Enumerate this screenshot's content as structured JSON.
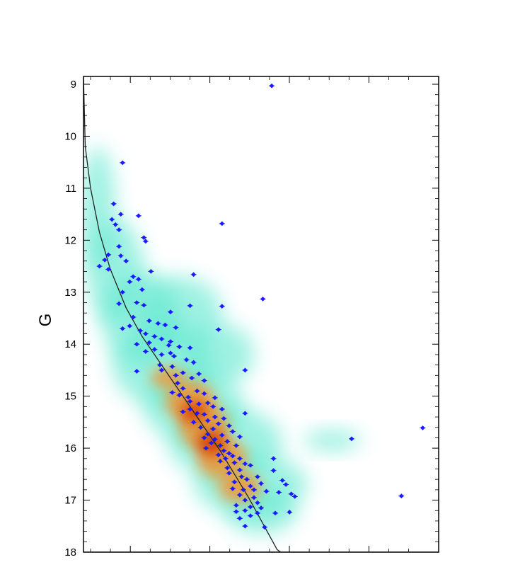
{
  "chart_data": {
    "type": "scatter",
    "title": "",
    "xlabel": "",
    "ylabel": "G",
    "ylim": [
      18,
      8.85
    ],
    "y_inverted": true,
    "xlim": [
      0.0,
      1.0
    ],
    "y_ticks": [
      9,
      10,
      11,
      12,
      13,
      14,
      15,
      16,
      17,
      18
    ],
    "grid": false,
    "legend": "none",
    "colors": {
      "points": "#1a1aff",
      "curve": "#222222",
      "density_low": "#5ee8cf",
      "density_mid": "#ff8a1a",
      "density_high": "#d23a00"
    },
    "series": [
      {
        "type": "scatter",
        "points": [
          [
            0.53,
            9.03
          ],
          [
            0.11,
            10.51
          ],
          [
            0.085,
            11.3
          ],
          [
            0.105,
            11.5
          ],
          [
            0.155,
            11.53
          ],
          [
            0.08,
            11.6
          ],
          [
            0.09,
            11.7
          ],
          [
            0.39,
            11.68
          ],
          [
            0.1,
            11.8
          ],
          [
            0.17,
            11.95
          ],
          [
            0.175,
            12.02
          ],
          [
            0.1,
            12.12
          ],
          [
            0.07,
            12.28
          ],
          [
            0.105,
            12.3
          ],
          [
            0.06,
            12.38
          ],
          [
            0.12,
            12.4
          ],
          [
            0.045,
            12.5
          ],
          [
            0.07,
            12.56
          ],
          [
            0.19,
            12.6
          ],
          [
            0.31,
            12.66
          ],
          [
            0.14,
            12.7
          ],
          [
            0.155,
            12.75
          ],
          [
            0.13,
            12.8
          ],
          [
            0.165,
            12.95
          ],
          [
            0.11,
            13.0
          ],
          [
            0.505,
            13.13
          ],
          [
            0.15,
            13.2
          ],
          [
            0.1,
            13.22
          ],
          [
            0.17,
            13.25
          ],
          [
            0.3,
            13.26
          ],
          [
            0.39,
            13.27
          ],
          [
            0.245,
            13.38
          ],
          [
            0.14,
            13.48
          ],
          [
            0.185,
            13.55
          ],
          [
            0.21,
            13.6
          ],
          [
            0.23,
            13.63
          ],
          [
            0.13,
            13.65
          ],
          [
            0.26,
            13.68
          ],
          [
            0.11,
            13.7
          ],
          [
            0.16,
            13.74
          ],
          [
            0.38,
            13.72
          ],
          [
            0.175,
            13.8
          ],
          [
            0.2,
            13.85
          ],
          [
            0.22,
            13.9
          ],
          [
            0.245,
            13.95
          ],
          [
            0.185,
            13.97
          ],
          [
            0.15,
            14.0
          ],
          [
            0.24,
            14.02
          ],
          [
            0.27,
            14.05
          ],
          [
            0.3,
            14.07
          ],
          [
            0.2,
            14.1
          ],
          [
            0.175,
            14.14
          ],
          [
            0.245,
            14.17
          ],
          [
            0.22,
            14.2
          ],
          [
            0.255,
            14.23
          ],
          [
            0.29,
            14.3
          ],
          [
            0.31,
            14.35
          ],
          [
            0.215,
            14.4
          ],
          [
            0.25,
            14.43
          ],
          [
            0.22,
            14.5
          ],
          [
            0.15,
            14.52
          ],
          [
            0.455,
            14.5
          ],
          [
            0.28,
            14.55
          ],
          [
            0.325,
            14.57
          ],
          [
            0.26,
            14.6
          ],
          [
            0.305,
            14.65
          ],
          [
            0.34,
            14.7
          ],
          [
            0.265,
            14.75
          ],
          [
            0.28,
            14.85
          ],
          [
            0.32,
            14.9
          ],
          [
            0.34,
            14.95
          ],
          [
            0.25,
            14.93
          ],
          [
            0.27,
            14.98
          ],
          [
            0.295,
            15.02
          ],
          [
            0.37,
            15.03
          ],
          [
            0.3,
            15.1
          ],
          [
            0.325,
            15.15
          ],
          [
            0.35,
            15.13
          ],
          [
            0.365,
            15.2
          ],
          [
            0.3,
            15.25
          ],
          [
            0.39,
            15.25
          ],
          [
            0.28,
            15.3
          ],
          [
            0.32,
            15.33
          ],
          [
            0.34,
            15.35
          ],
          [
            0.455,
            15.33
          ],
          [
            0.37,
            15.4
          ],
          [
            0.395,
            15.43
          ],
          [
            0.35,
            15.47
          ],
          [
            0.31,
            15.5
          ],
          [
            0.38,
            15.53
          ],
          [
            0.41,
            15.57
          ],
          [
            0.33,
            15.6
          ],
          [
            0.365,
            15.63
          ],
          [
            0.42,
            15.68
          ],
          [
            0.35,
            15.73
          ],
          [
            0.39,
            15.75
          ],
          [
            0.44,
            15.78
          ],
          [
            0.34,
            15.8
          ],
          [
            0.37,
            15.83
          ],
          [
            0.405,
            15.87
          ],
          [
            0.755,
            15.82
          ],
          [
            0.36,
            15.9
          ],
          [
            0.385,
            15.95
          ],
          [
            0.43,
            15.95
          ],
          [
            0.345,
            16.0
          ],
          [
            0.395,
            16.05
          ],
          [
            0.41,
            16.1
          ],
          [
            0.38,
            16.13
          ],
          [
            0.42,
            16.15
          ],
          [
            0.4,
            16.2
          ],
          [
            0.44,
            16.2
          ],
          [
            0.535,
            16.2
          ],
          [
            0.385,
            16.25
          ],
          [
            0.425,
            16.28
          ],
          [
            0.455,
            16.3
          ],
          [
            0.47,
            16.33
          ],
          [
            0.405,
            16.38
          ],
          [
            0.44,
            16.42
          ],
          [
            0.535,
            16.43
          ],
          [
            0.41,
            16.48
          ],
          [
            0.445,
            16.55
          ],
          [
            0.49,
            16.55
          ],
          [
            0.46,
            16.6
          ],
          [
            0.425,
            16.65
          ],
          [
            0.5,
            16.68
          ],
          [
            0.56,
            16.62
          ],
          [
            0.57,
            16.7
          ],
          [
            0.47,
            16.73
          ],
          [
            0.42,
            16.78
          ],
          [
            0.45,
            16.8
          ],
          [
            0.48,
            16.8
          ],
          [
            0.515,
            16.83
          ],
          [
            0.55,
            16.85
          ],
          [
            0.585,
            16.88
          ],
          [
            0.44,
            16.9
          ],
          [
            0.48,
            16.95
          ],
          [
            0.595,
            16.93
          ],
          [
            0.455,
            17.0
          ],
          [
            0.49,
            17.05
          ],
          [
            0.43,
            17.1
          ],
          [
            0.47,
            17.13
          ],
          [
            0.5,
            17.15
          ],
          [
            0.455,
            17.2
          ],
          [
            0.43,
            17.22
          ],
          [
            0.49,
            17.25
          ],
          [
            0.54,
            17.25
          ],
          [
            0.58,
            17.23
          ],
          [
            0.47,
            17.3
          ],
          [
            0.44,
            17.35
          ],
          [
            0.455,
            17.5
          ],
          [
            0.51,
            17.52
          ],
          [
            0.955,
            15.61
          ],
          [
            0.895,
            16.92
          ]
        ]
      },
      {
        "type": "line",
        "points": [
          [
            0.0,
            8.85
          ],
          [
            0.005,
            10.2
          ],
          [
            0.02,
            11.0
          ],
          [
            0.045,
            11.85
          ],
          [
            0.075,
            12.55
          ],
          [
            0.12,
            13.3
          ],
          [
            0.165,
            13.85
          ],
          [
            0.21,
            14.3
          ],
          [
            0.255,
            14.75
          ],
          [
            0.3,
            15.2
          ],
          [
            0.345,
            15.65
          ],
          [
            0.385,
            16.05
          ],
          [
            0.425,
            16.5
          ],
          [
            0.465,
            16.95
          ],
          [
            0.505,
            17.45
          ],
          [
            0.545,
            17.95
          ],
          [
            0.555,
            18.0
          ]
        ]
      }
    ],
    "density": [
      {
        "x": 0.09,
        "y": 12.6,
        "rx": 0.08,
        "ry": 1.0,
        "level": "low"
      },
      {
        "x": 0.04,
        "y": 11.4,
        "rx": 0.05,
        "ry": 1.2,
        "level": "low"
      },
      {
        "x": 0.16,
        "y": 13.5,
        "rx": 0.11,
        "ry": 0.9,
        "level": "low"
      },
      {
        "x": 0.27,
        "y": 13.4,
        "rx": 0.12,
        "ry": 0.7,
        "level": "low"
      },
      {
        "x": 0.22,
        "y": 14.4,
        "rx": 0.14,
        "ry": 0.8,
        "level": "low"
      },
      {
        "x": 0.38,
        "y": 14.2,
        "rx": 0.1,
        "ry": 0.6,
        "level": "low"
      },
      {
        "x": 0.31,
        "y": 15.2,
        "rx": 0.14,
        "ry": 0.7,
        "level": "low"
      },
      {
        "x": 0.4,
        "y": 15.9,
        "rx": 0.16,
        "ry": 0.7,
        "level": "low"
      },
      {
        "x": 0.47,
        "y": 16.7,
        "rx": 0.16,
        "ry": 0.6,
        "level": "low"
      },
      {
        "x": 0.5,
        "y": 17.2,
        "rx": 0.1,
        "ry": 0.45,
        "level": "low"
      },
      {
        "x": 0.7,
        "y": 15.85,
        "rx": 0.08,
        "ry": 0.2,
        "level": "low"
      },
      {
        "x": 0.3,
        "y": 15.1,
        "rx": 0.07,
        "ry": 0.4,
        "level": "mid"
      },
      {
        "x": 0.34,
        "y": 15.6,
        "rx": 0.07,
        "ry": 0.45,
        "level": "mid"
      },
      {
        "x": 0.39,
        "y": 16.2,
        "rx": 0.07,
        "ry": 0.4,
        "level": "mid"
      },
      {
        "x": 0.44,
        "y": 16.75,
        "rx": 0.06,
        "ry": 0.3,
        "level": "mid"
      },
      {
        "x": 0.24,
        "y": 14.65,
        "rx": 0.05,
        "ry": 0.2,
        "level": "mid"
      },
      {
        "x": 0.36,
        "y": 15.9,
        "rx": 0.04,
        "ry": 0.25,
        "level": "high"
      },
      {
        "x": 0.31,
        "y": 15.3,
        "rx": 0.035,
        "ry": 0.2,
        "level": "high"
      }
    ]
  }
}
